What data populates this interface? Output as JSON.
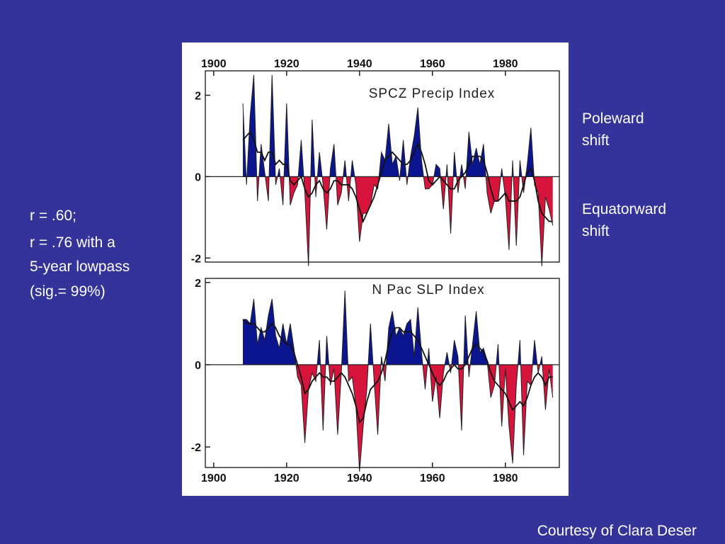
{
  "chart_data": [
    {
      "type": "area",
      "title": "SPCZ Precip Index",
      "xaxis_position": "top",
      "positive_color": "#0b1590",
      "negative_color": "#d7143c",
      "line_color": "#111111",
      "xlim": [
        1897.7,
        1994.8
      ],
      "xticks": [
        1900,
        1920,
        1940,
        1960,
        1980
      ],
      "ylim": [
        -2.1,
        2.6
      ],
      "yticks": [
        -2,
        0,
        2
      ],
      "x": [
        1908,
        1909,
        1910,
        1911,
        1912,
        1913,
        1914,
        1915,
        1916,
        1917,
        1918,
        1919,
        1920,
        1921,
        1922,
        1923,
        1924,
        1925,
        1926,
        1927,
        1928,
        1929,
        1930,
        1931,
        1932,
        1933,
        1934,
        1935,
        1936,
        1937,
        1938,
        1939,
        1940,
        1941,
        1942,
        1943,
        1944,
        1945,
        1946,
        1947,
        1948,
        1949,
        1950,
        1951,
        1952,
        1953,
        1954,
        1955,
        1956,
        1957,
        1958,
        1959,
        1960,
        1961,
        1962,
        1963,
        1964,
        1965,
        1966,
        1967,
        1968,
        1969,
        1970,
        1971,
        1972,
        1973,
        1974,
        1975,
        1976,
        1977,
        1978,
        1979,
        1980,
        1981,
        1982,
        1983,
        1984,
        1985,
        1986,
        1987,
        1988,
        1989,
        1990,
        1991,
        1992,
        1993
      ],
      "series": [
        {
          "values": [
            1.8,
            -0.2,
            1.5,
            2.5,
            -0.6,
            0.8,
            0.1,
            -0.6,
            2.5,
            -0.2,
            0.2,
            -0.7,
            1.8,
            -0.7,
            -0.4,
            -0.2,
            0.9,
            -0.4,
            -2.2,
            1.4,
            -0.5,
            0.6,
            -0.2,
            -1.3,
            0.2,
            0.8,
            -0.7,
            -0.4,
            0.4,
            -0.6,
            0.4,
            -0.2,
            -1.6,
            -0.9,
            -0.9,
            -0.7,
            -0.2,
            -0.3,
            0.6,
            0.4,
            1.3,
            0.3,
            0.5,
            -0.1,
            0.9,
            -0.2,
            0.5,
            1.0,
            1.7,
            0.4,
            -0.3,
            -0.3,
            -0.2,
            0.3,
            0.2,
            -0.8,
            0.3,
            -1.4,
            0.6,
            -0.4,
            0.3,
            -0.3,
            1.1,
            0.3,
            0.7,
            0.3,
            0.8,
            -0.4,
            -0.9,
            -0.6,
            -0.6,
            0.2,
            -0.5,
            -1.8,
            0.4,
            -1.7,
            0.4,
            -0.4,
            0.3,
            1.2,
            -0.2,
            -0.4,
            -2.2,
            -0.5,
            -0.8,
            -1.2
          ]
        },
        {
          "values": [
            0.9,
            1.0,
            1.1,
            0.9,
            0.6,
            0.6,
            0.4,
            0.6,
            0.6,
            0.3,
            0.4,
            0.3,
            0.3,
            -0.1,
            -0.2,
            -0.1,
            0,
            -0.3,
            -0.5,
            -0.4,
            -0.2,
            -0.1,
            -0.3,
            -0.4,
            -0.3,
            -0.1,
            -0.1,
            -0.2,
            -0.2,
            -0.2,
            -0.3,
            -0.5,
            -0.8,
            -1.1,
            -0.9,
            -0.7,
            -0.5,
            -0.2,
            0.1,
            0.4,
            0.5,
            0.6,
            0.5,
            0.4,
            0.3,
            0.3,
            0.4,
            0.6,
            0.8,
            0.6,
            0.3,
            -0.1,
            -0.2,
            -0.1,
            0,
            -0.1,
            -0.2,
            -0.3,
            -0.3,
            -0.1,
            0,
            0.1,
            0.3,
            0.5,
            0.5,
            0.5,
            0.4,
            0.1,
            -0.3,
            -0.6,
            -0.6,
            -0.5,
            -0.4,
            -0.6,
            -0.6,
            -0.6,
            -0.5,
            -0.2,
            0.1,
            0.2,
            -0.1,
            -0.6,
            -0.9,
            -1.0,
            -1.1,
            -1.1
          ]
        }
      ]
    },
    {
      "type": "area",
      "title": "N Pac SLP Index",
      "xaxis_position": "bottom",
      "positive_color": "#0b1590",
      "negative_color": "#d7143c",
      "line_color": "#111111",
      "xlim": [
        1897.7,
        1994.8
      ],
      "xticks": [
        1900,
        1920,
        1940,
        1960,
        1980
      ],
      "ylim": [
        -2.5,
        2.1
      ],
      "yticks": [
        -2,
        0,
        2
      ],
      "x": [
        1908,
        1909,
        1910,
        1911,
        1912,
        1913,
        1914,
        1915,
        1916,
        1917,
        1918,
        1919,
        1920,
        1921,
        1922,
        1923,
        1924,
        1925,
        1926,
        1927,
        1928,
        1929,
        1930,
        1931,
        1932,
        1933,
        1934,
        1935,
        1936,
        1937,
        1938,
        1939,
        1940,
        1941,
        1942,
        1943,
        1944,
        1945,
        1946,
        1947,
        1948,
        1949,
        1950,
        1951,
        1952,
        1953,
        1954,
        1955,
        1956,
        1957,
        1958,
        1959,
        1960,
        1961,
        1962,
        1963,
        1964,
        1965,
        1966,
        1967,
        1968,
        1969,
        1970,
        1971,
        1972,
        1973,
        1974,
        1975,
        1976,
        1977,
        1978,
        1979,
        1980,
        1981,
        1982,
        1983,
        1984,
        1985,
        1986,
        1987,
        1988,
        1989,
        1990,
        1991,
        1992,
        1993
      ],
      "series": [
        {
          "values": [
            1.1,
            1.1,
            1.0,
            1.6,
            0.5,
            0.9,
            0.6,
            1.2,
            1.6,
            0.7,
            0.4,
            1.0,
            0.5,
            1.0,
            0.4,
            -0.3,
            -0.5,
            -1.9,
            -0.6,
            -0.2,
            -0.4,
            0.6,
            -1.6,
            0.7,
            -0.5,
            -0.1,
            -1.7,
            -0.2,
            1.8,
            -0.4,
            -0.3,
            -1.0,
            -2.6,
            -1.5,
            -0.6,
            1.0,
            -0.4,
            -1.7,
            0.2,
            -0.4,
            0.9,
            1.3,
            0.7,
            0.9,
            0.7,
            1.0,
            1.1,
            0.2,
            1.4,
            0.3,
            -0.6,
            0.4,
            -0.9,
            -0.3,
            -1.3,
            -0.2,
            0.3,
            -0.2,
            0.6,
            0.2,
            -1.6,
            1.2,
            -0.3,
            0.5,
            1.3,
            0.3,
            0.4,
            0.1,
            -0.8,
            -0.5,
            0.5,
            -1.5,
            -0.1,
            -1.5,
            -2.4,
            -0.5,
            0.6,
            -2.2,
            -0.4,
            -0.5,
            0.6,
            -0.2,
            0.2,
            -1.1,
            -0.1,
            -0.8
          ]
        },
        {
          "values": [
            1.1,
            1.0,
            1.0,
            1.0,
            0.9,
            0.8,
            0.8,
            0.9,
            1.0,
            0.9,
            0.7,
            0.6,
            0.5,
            0.5,
            0.3,
            0,
            -0.3,
            -0.7,
            -0.6,
            -0.4,
            -0.3,
            -0.2,
            -0.3,
            -0.3,
            -0.4,
            -0.4,
            -0.3,
            -0.2,
            -0.3,
            -0.5,
            -0.7,
            -1.0,
            -1.4,
            -1.3,
            -0.9,
            -0.6,
            -0.5,
            -0.4,
            -0.2,
            0.1,
            0.5,
            0.8,
            0.9,
            0.9,
            0.8,
            0.8,
            0.8,
            0.7,
            0.6,
            0.4,
            0.2,
            0,
            -0.2,
            -0.4,
            -0.5,
            -0.4,
            -0.2,
            -0.1,
            0,
            -0.1,
            -0.1,
            0,
            0.2,
            0.4,
            0.5,
            0.4,
            0.3,
            0.1,
            -0.2,
            -0.4,
            -0.5,
            -0.6,
            -0.7,
            -0.9,
            -1.1,
            -1.0,
            -0.9,
            -1.0,
            -0.8,
            -0.5,
            -0.3,
            -0.2,
            -0.3,
            -0.5,
            -0.3,
            -0.3
          ]
        }
      ]
    }
  ],
  "shift_labels": [
    [
      "Poleward",
      "shift"
    ],
    [
      "Equatorward",
      "shift"
    ]
  ],
  "correlation_text": [
    "r = .60;",
    "r = .76 with a",
    "5-year lowpass",
    "(sig.= 99%)"
  ],
  "credit": "Courtesy of Clara Deser"
}
